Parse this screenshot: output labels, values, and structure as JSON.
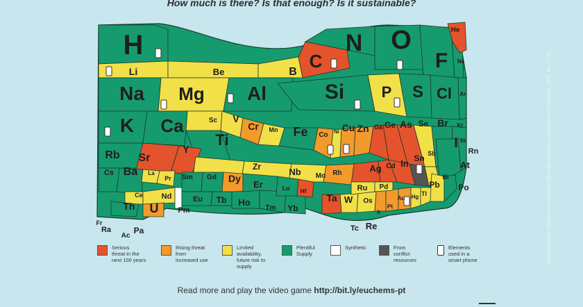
{
  "title": "How much is there? Is that enough? Is it sustainable?",
  "colors": {
    "serious": "#e4532c",
    "rising": "#f39a2c",
    "limited": "#f2e048",
    "plentiful": "#169b6f",
    "synthetic": "#ffffff",
    "conflict": "#555555",
    "background": "#c8e6ee",
    "text": "#1e1e1e"
  },
  "elements": [
    {
      "symbol": "H",
      "status": "plentiful",
      "phone": true
    },
    {
      "symbol": "He",
      "status": "serious",
      "phone": false
    },
    {
      "symbol": "Li",
      "status": "limited",
      "phone": true
    },
    {
      "symbol": "Be",
      "status": "limited",
      "phone": false
    },
    {
      "symbol": "B",
      "status": "limited",
      "phone": false
    },
    {
      "symbol": "C",
      "status": "serious",
      "phone": true
    },
    {
      "symbol": "N",
      "status": "plentiful",
      "phone": false
    },
    {
      "symbol": "O",
      "status": "plentiful",
      "phone": true
    },
    {
      "symbol": "F",
      "status": "plentiful",
      "phone": false
    },
    {
      "symbol": "Ne",
      "status": "plentiful",
      "phone": false
    },
    {
      "symbol": "Na",
      "status": "plentiful",
      "phone": false
    },
    {
      "symbol": "Mg",
      "status": "limited",
      "phone": true
    },
    {
      "symbol": "Al",
      "status": "plentiful",
      "phone": true
    },
    {
      "symbol": "Si",
      "status": "plentiful",
      "phone": true
    },
    {
      "symbol": "P",
      "status": "limited",
      "phone": true
    },
    {
      "symbol": "S",
      "status": "plentiful",
      "phone": false
    },
    {
      "symbol": "Cl",
      "status": "plentiful",
      "phone": false
    },
    {
      "symbol": "Ar",
      "status": "plentiful",
      "phone": false
    },
    {
      "symbol": "K",
      "status": "plentiful",
      "phone": true
    },
    {
      "symbol": "Ca",
      "status": "plentiful",
      "phone": false
    },
    {
      "symbol": "Sc",
      "status": "limited",
      "phone": false
    },
    {
      "symbol": "Ti",
      "status": "plentiful",
      "phone": false
    },
    {
      "symbol": "V",
      "status": "limited",
      "phone": false
    },
    {
      "symbol": "Cr",
      "status": "rising",
      "phone": false
    },
    {
      "symbol": "Mn",
      "status": "limited",
      "phone": false
    },
    {
      "symbol": "Fe",
      "status": "plentiful",
      "phone": false
    },
    {
      "symbol": "Co",
      "status": "rising",
      "phone": true
    },
    {
      "symbol": "Ni",
      "status": "limited",
      "phone": false
    },
    {
      "symbol": "Cu",
      "status": "rising",
      "phone": true
    },
    {
      "symbol": "Zn",
      "status": "rising",
      "phone": false
    },
    {
      "symbol": "Ga",
      "status": "serious",
      "phone": false
    },
    {
      "symbol": "Ge",
      "status": "serious",
      "phone": false
    },
    {
      "symbol": "As",
      "status": "serious",
      "phone": false
    },
    {
      "symbol": "Se",
      "status": "limited",
      "phone": false
    },
    {
      "symbol": "Br",
      "status": "plentiful",
      "phone": false
    },
    {
      "symbol": "Kr",
      "status": "plentiful",
      "phone": false
    },
    {
      "symbol": "Rb",
      "status": "plentiful",
      "phone": false
    },
    {
      "symbol": "Sr",
      "status": "serious",
      "phone": false
    },
    {
      "symbol": "Y",
      "status": "serious",
      "phone": false
    },
    {
      "symbol": "Zr",
      "status": "limited",
      "phone": false
    },
    {
      "symbol": "Nb",
      "status": "limited",
      "phone": false
    },
    {
      "symbol": "Mo",
      "status": "limited",
      "phone": false
    },
    {
      "symbol": "Rh",
      "status": "rising",
      "phone": false
    },
    {
      "symbol": "Ag",
      "status": "serious",
      "phone": false
    },
    {
      "symbol": "Cd",
      "status": "serious",
      "phone": false
    },
    {
      "symbol": "In",
      "status": "serious",
      "phone": false
    },
    {
      "symbol": "Sn",
      "status": "conflict",
      "phone": true
    },
    {
      "symbol": "Sb",
      "status": "limited",
      "phone": false
    },
    {
      "symbol": "I",
      "status": "plentiful",
      "phone": false
    },
    {
      "symbol": "Xe",
      "status": "plentiful",
      "phone": false
    },
    {
      "symbol": "Cs",
      "status": "plentiful",
      "phone": false
    },
    {
      "symbol": "Ba",
      "status": "plentiful",
      "phone": false
    },
    {
      "symbol": "La",
      "status": "limited",
      "phone": false
    },
    {
      "symbol": "Ce",
      "status": "limited",
      "phone": false
    },
    {
      "symbol": "Pr",
      "status": "limited",
      "phone": false
    },
    {
      "symbol": "Nd",
      "status": "limited",
      "phone": false
    },
    {
      "symbol": "Pm",
      "status": "synthetic",
      "phone": false
    },
    {
      "symbol": "Sm",
      "status": "plentiful",
      "phone": false
    },
    {
      "symbol": "Eu",
      "status": "plentiful",
      "phone": false
    },
    {
      "symbol": "Gd",
      "status": "plentiful",
      "phone": false
    },
    {
      "symbol": "Tb",
      "status": "plentiful",
      "phone": false
    },
    {
      "symbol": "Dy",
      "status": "rising",
      "phone": false
    },
    {
      "symbol": "Ho",
      "status": "plentiful",
      "phone": false
    },
    {
      "symbol": "Er",
      "status": "plentiful",
      "phone": false
    },
    {
      "symbol": "Tm",
      "status": "plentiful",
      "phone": false
    },
    {
      "symbol": "Yb",
      "status": "plentiful",
      "phone": false
    },
    {
      "symbol": "Lu",
      "status": "plentiful",
      "phone": false
    },
    {
      "symbol": "Hf",
      "status": "serious",
      "phone": false
    },
    {
      "symbol": "Ta",
      "status": "serious",
      "phone": false
    },
    {
      "symbol": "W",
      "status": "limited",
      "phone": false
    },
    {
      "symbol": "Os",
      "status": "limited",
      "phone": false
    },
    {
      "symbol": "Ir",
      "status": "rising",
      "phone": false
    },
    {
      "symbol": "Pt",
      "status": "rising",
      "phone": false
    },
    {
      "symbol": "Au",
      "status": "rising",
      "phone": true
    },
    {
      "symbol": "Hg",
      "status": "limited",
      "phone": false
    },
    {
      "symbol": "Tl",
      "status": "limited",
      "phone": false
    },
    {
      "symbol": "Pb",
      "status": "limited",
      "phone": false
    },
    {
      "symbol": "Bi",
      "status": "plentiful",
      "phone": false
    },
    {
      "symbol": "Ru",
      "status": "limited",
      "phone": false
    },
    {
      "symbol": "Pd",
      "status": "limited",
      "phone": false
    },
    {
      "symbol": "Re",
      "status": "synthetic",
      "phone": false
    },
    {
      "symbol": "Tc",
      "status": "synthetic",
      "phone": false
    },
    {
      "symbol": "Th",
      "status": "plentiful",
      "phone": false
    },
    {
      "symbol": "U",
      "status": "rising",
      "phone": false
    },
    {
      "symbol": "Pa",
      "status": "synthetic",
      "phone": false
    },
    {
      "symbol": "Ac",
      "status": "synthetic",
      "phone": false
    },
    {
      "symbol": "Ra",
      "status": "synthetic",
      "phone": false
    },
    {
      "symbol": "Fr",
      "status": "synthetic",
      "phone": false
    },
    {
      "symbol": "Rn",
      "status": "synthetic",
      "phone": false
    },
    {
      "symbol": "At",
      "status": "synthetic",
      "phone": false
    },
    {
      "symbol": "Po",
      "status": "synthetic",
      "phone": false
    }
  ],
  "legend": [
    {
      "key": "serious",
      "label": "Serious\nthreat in the\nnext 100 years"
    },
    {
      "key": "rising",
      "label": "Rising threat\nfrom\nincreased use"
    },
    {
      "key": "limited",
      "label": "Limited\navailability,\nfuture risk to\nsupply"
    },
    {
      "key": "plentiful",
      "label": "Plentiful\nSupply"
    },
    {
      "key": "synthetic",
      "label": "Synthetic"
    },
    {
      "key": "conflict",
      "label": "From\nconflict\nresources"
    },
    {
      "key": "phone",
      "label": "Elements\nused in a\nsmart phone"
    }
  ],
  "footer": {
    "text": "Read more and play the video game ",
    "link": "http://bit.ly/euchems-pt"
  },
  "credit": "Inspired by WF Sheehan's A Periodic Table with Emphasis published in Chemistry, 1976, 49, 17-18"
}
